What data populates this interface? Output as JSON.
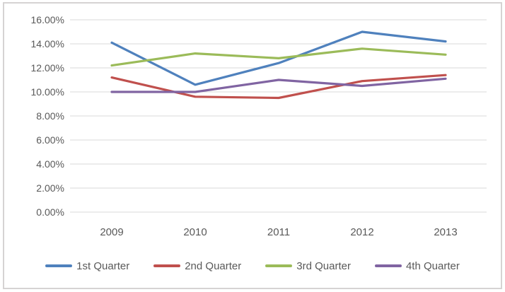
{
  "chart": {
    "background": "#FFFFFF",
    "frame_border_color": "#D6D3D3",
    "text_color": "#595959",
    "gridline_color": "#D9D9D9",
    "y_axis": {
      "tick_labels": [
        "16.00%",
        "14.00%",
        "12.00%",
        "10.00%",
        "8.00%",
        "6.00%",
        "4.00%",
        "2.00%",
        "0.00%"
      ],
      "min": 0,
      "max": 16,
      "step": 2
    },
    "x_axis": {
      "categories": [
        "2009",
        "2010",
        "2011",
        "2012",
        "2013"
      ]
    },
    "legend": {
      "position": "bottom",
      "items": [
        {
          "label": "1st Quarter",
          "color": "#4F81BD"
        },
        {
          "label": "2nd Quarter",
          "color": "#C0504D"
        },
        {
          "label": "3rd Quarter",
          "color": "#9BBB59"
        },
        {
          "label": "4th Quarter",
          "color": "#8064A2"
        }
      ]
    }
  },
  "chart_data": {
    "type": "line",
    "title": "",
    "xlabel": "",
    "ylabel": "",
    "categories": [
      "2009",
      "2010",
      "2011",
      "2012",
      "2013"
    ],
    "series": [
      {
        "name": "1st Quarter",
        "color": "#4F81BD",
        "values": [
          14.1,
          10.6,
          12.4,
          15.0,
          14.2
        ]
      },
      {
        "name": "2nd Quarter",
        "color": "#C0504D",
        "values": [
          11.2,
          9.6,
          9.5,
          10.9,
          11.4
        ]
      },
      {
        "name": "3rd Quarter",
        "color": "#9BBB59",
        "values": [
          12.2,
          13.2,
          12.8,
          13.6,
          13.1
        ]
      },
      {
        "name": "4th Quarter",
        "color": "#8064A2",
        "values": [
          10.0,
          10.0,
          11.0,
          10.5,
          11.1
        ]
      }
    ],
    "ylim": [
      0,
      16
    ],
    "y_tick_format": "0.00%",
    "grid": true,
    "legend_position": "bottom"
  }
}
